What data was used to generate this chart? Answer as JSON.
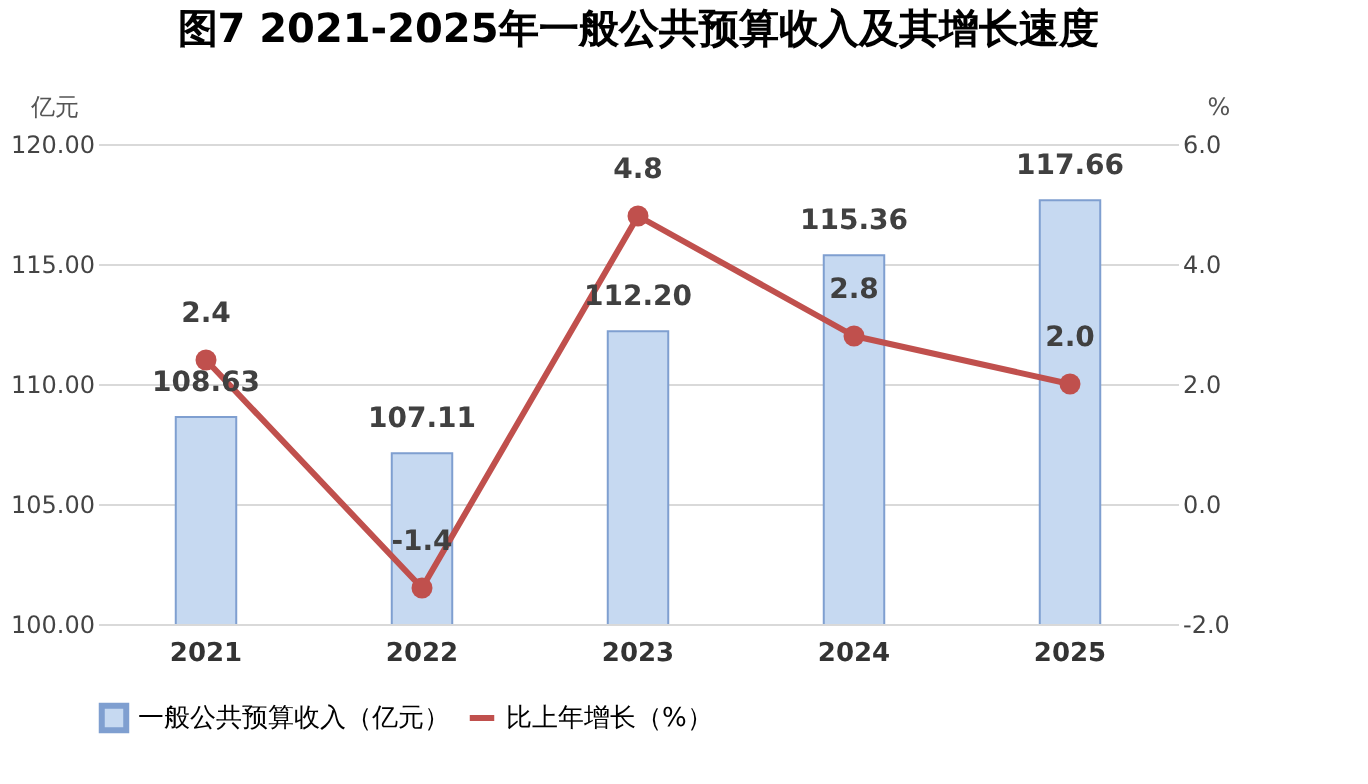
{
  "chart_data": {
    "type": "bar",
    "title": "图7 2021-2025年一般公共预算收入及其增长速度",
    "ylabel": "亿元",
    "y2label": "%",
    "categories": [
      "2021",
      "2022",
      "2023",
      "2024",
      "2025"
    ],
    "series": [
      {
        "name": "一般公共预算收入（亿元）",
        "color": "#c6d9f1",
        "values": [
          108.63,
          107.11,
          112.2,
          115.36,
          117.66
        ],
        "value_labels": [
          "108.63",
          "107.11",
          "112.20",
          "115.36",
          "117.66"
        ]
      },
      {
        "name": "比上年增长（%）",
        "type": "line",
        "axis": "y2",
        "color": "#c0504d",
        "values": [
          2.4,
          -1.4,
          4.8,
          2.8,
          2.0
        ],
        "value_labels": [
          "2.4",
          "-1.4",
          "4.8",
          "2.8",
          "2.0"
        ]
      }
    ],
    "ylim": [
      100,
      120
    ],
    "yticks": [
      {
        "value": 100,
        "label": "100.00"
      },
      {
        "value": 105,
        "label": "105.00"
      },
      {
        "value": 110,
        "label": "110.00"
      },
      {
        "value": 115,
        "label": "115.00"
      },
      {
        "value": 120,
        "label": "120.00"
      }
    ],
    "y2lim": [
      -2,
      6
    ],
    "y2ticks": [
      {
        "value": -2,
        "label": "-2.0"
      },
      {
        "value": 0,
        "label": "0.0"
      },
      {
        "value": 2,
        "label": "2.0"
      },
      {
        "value": 4,
        "label": "4.0"
      },
      {
        "value": 6,
        "label": "6.0"
      }
    ],
    "grid": "y",
    "legend": "bottom",
    "marker": "circle",
    "line_style": "solid"
  }
}
